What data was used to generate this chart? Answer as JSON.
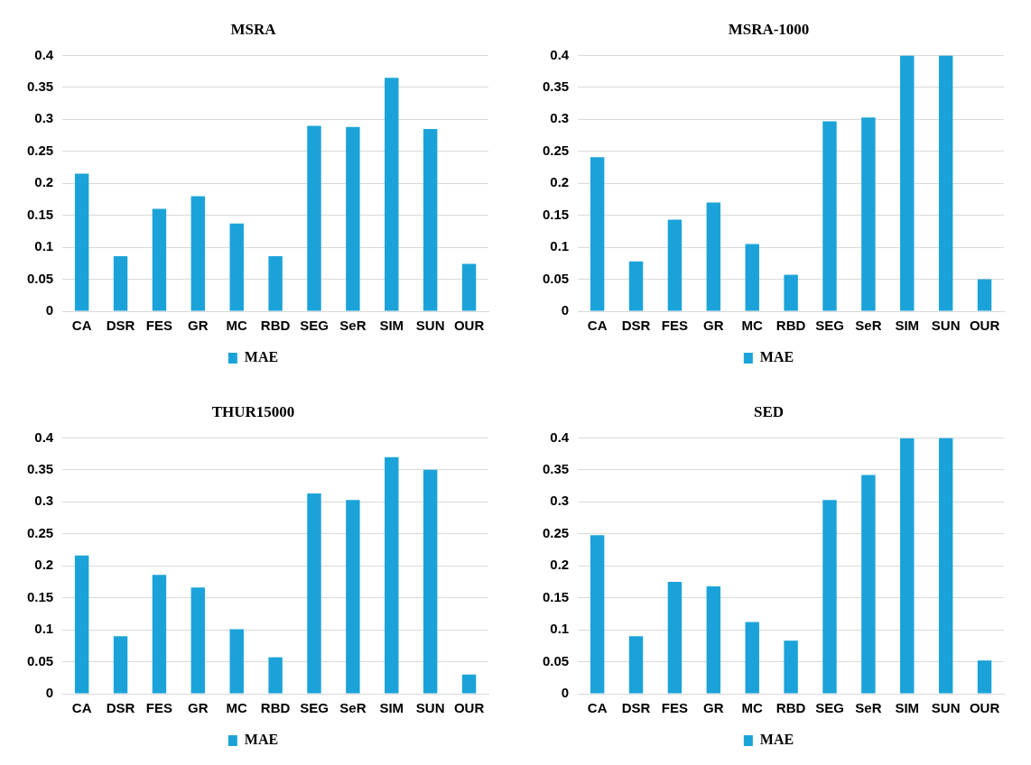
{
  "chart_data": [
    {
      "type": "bar",
      "title": "MSRA",
      "categories": [
        "CA",
        "DSR",
        "FES",
        "GR",
        "MC",
        "RBD",
        "SEG",
        "SeR",
        "SIM",
        "SUN",
        "OUR"
      ],
      "series": [
        {
          "name": "MAE",
          "color": "#1ba3d9",
          "values": [
            0.215,
            0.086,
            0.16,
            0.18,
            0.137,
            0.086,
            0.29,
            0.288,
            0.365,
            0.285,
            0.074
          ]
        }
      ],
      "ylim": [
        0,
        0.4
      ],
      "yticks": [
        0,
        0.05,
        0.1,
        0.15,
        0.2,
        0.25,
        0.3,
        0.35,
        0.4
      ],
      "grid": "y",
      "legend": "bottom"
    },
    {
      "type": "bar",
      "title": "MSRA-1000",
      "categories": [
        "CA",
        "DSR",
        "FES",
        "GR",
        "MC",
        "RBD",
        "SEG",
        "SeR",
        "SIM",
        "SUN",
        "OUR"
      ],
      "series": [
        {
          "name": "MAE",
          "color": "#1ba3d9",
          "values": [
            0.241,
            0.078,
            0.143,
            0.17,
            0.105,
            0.057,
            0.297,
            0.303,
            0.4,
            0.4,
            0.05
          ]
        }
      ],
      "ylim": [
        0,
        0.4
      ],
      "yticks": [
        0,
        0.05,
        0.1,
        0.15,
        0.2,
        0.25,
        0.3,
        0.35,
        0.4
      ],
      "grid": "y",
      "legend": "bottom"
    },
    {
      "type": "bar",
      "title": "THUR15000",
      "categories": [
        "CA",
        "DSR",
        "FES",
        "GR",
        "MC",
        "RBD",
        "SEG",
        "SeR",
        "SIM",
        "SUN",
        "OUR"
      ],
      "series": [
        {
          "name": "MAE",
          "color": "#1ba3d9",
          "values": [
            0.216,
            0.09,
            0.186,
            0.166,
            0.101,
            0.057,
            0.313,
            0.303,
            0.37,
            0.35,
            0.03
          ]
        }
      ],
      "ylim": [
        0,
        0.4
      ],
      "yticks": [
        0,
        0.05,
        0.1,
        0.15,
        0.2,
        0.25,
        0.3,
        0.35,
        0.4
      ],
      "grid": "y",
      "legend": "bottom"
    },
    {
      "type": "bar",
      "title": "SED",
      "categories": [
        "CA",
        "DSR",
        "FES",
        "GR",
        "MC",
        "RBD",
        "SEG",
        "SeR",
        "SIM",
        "SUN",
        "OUR"
      ],
      "series": [
        {
          "name": "MAE",
          "color": "#1ba3d9",
          "values": [
            0.248,
            0.09,
            0.175,
            0.168,
            0.112,
            0.083,
            0.303,
            0.342,
            0.399,
            0.4,
            0.052
          ]
        }
      ],
      "ylim": [
        0,
        0.4
      ],
      "yticks": [
        0,
        0.05,
        0.1,
        0.15,
        0.2,
        0.25,
        0.3,
        0.35,
        0.4
      ],
      "grid": "y",
      "legend": "bottom"
    }
  ]
}
